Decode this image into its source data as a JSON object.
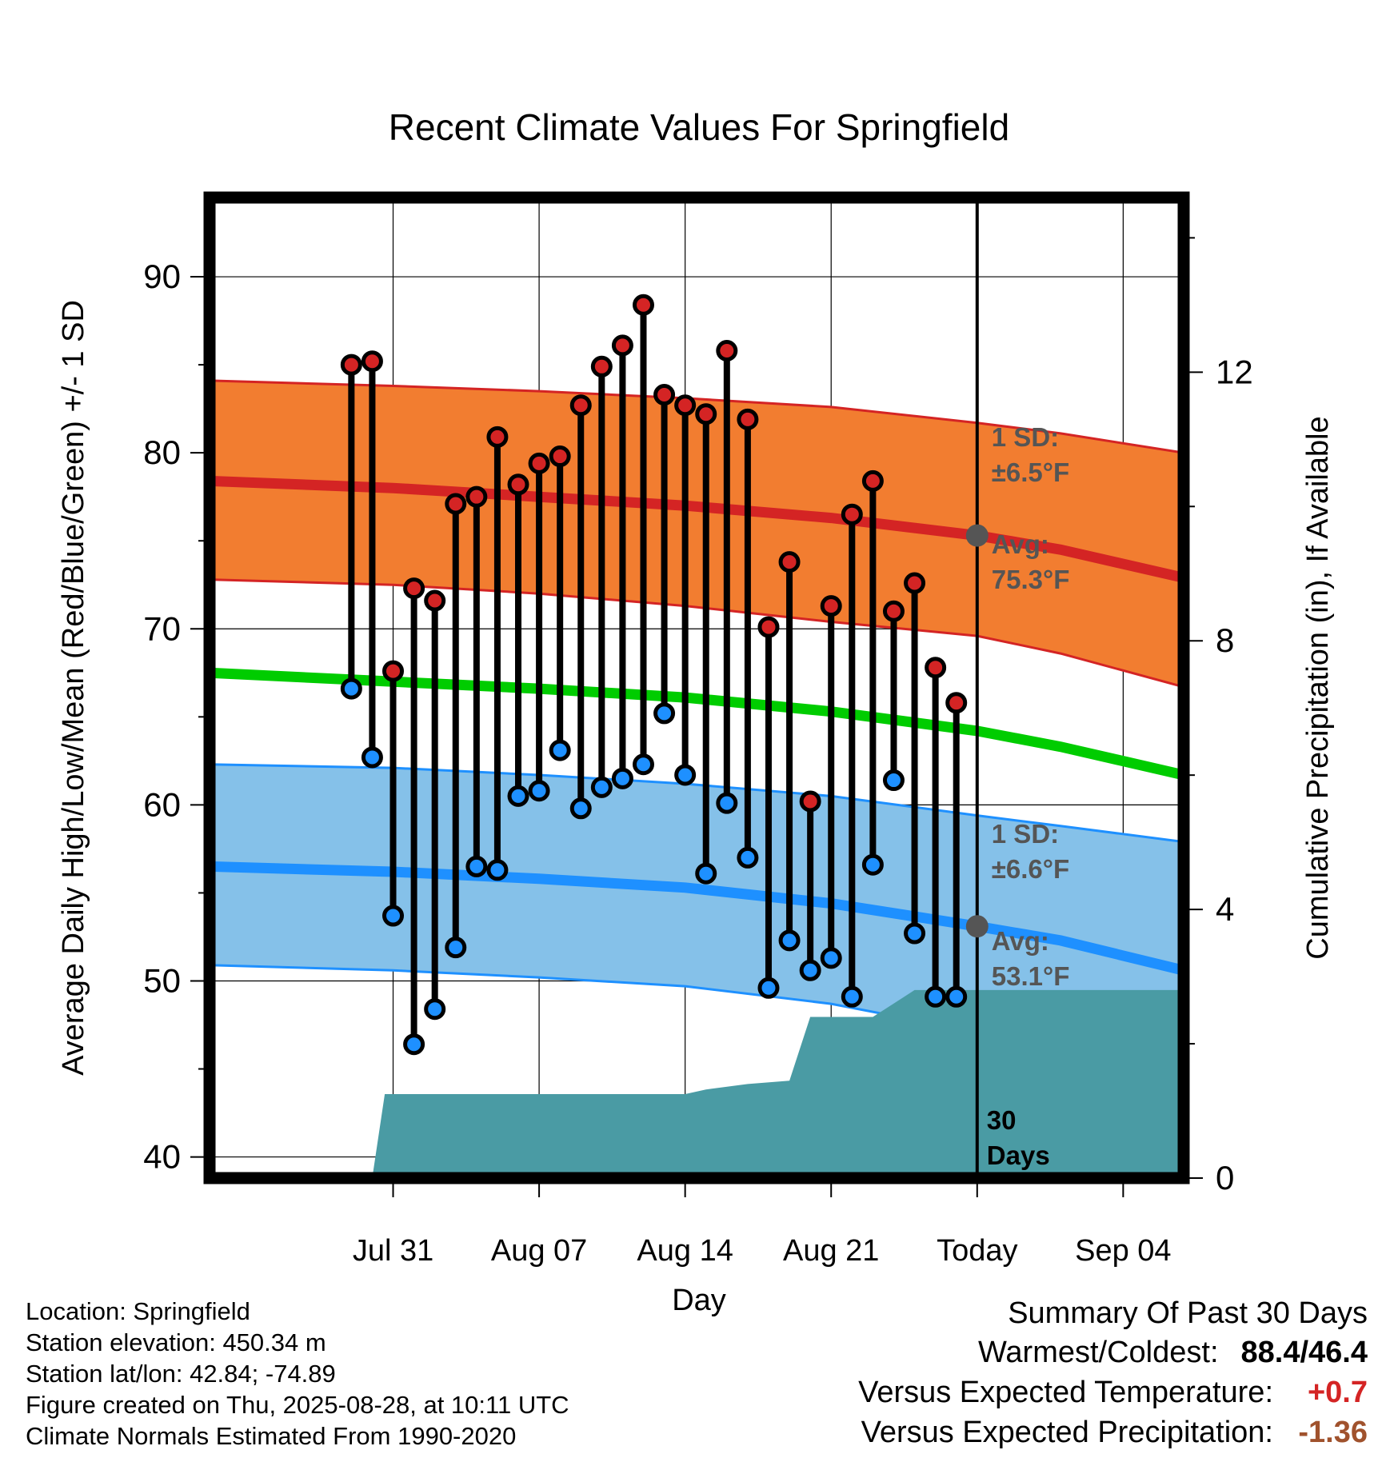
{
  "chart_data": {
    "type": "line",
    "title": "Recent Climate Values For Springfield",
    "xlabel": "Day",
    "ylabel": "Average Daily High/Low/Mean (Red/Blue/Green) +/- 1 SD",
    "y2label": "Cumulative Precipitation (in), If Available",
    "ylim": [
      38.8,
      94.5
    ],
    "y2lim": [
      0,
      14.6
    ],
    "xlim_days": [
      -36.8,
      9.9
    ],
    "yticks": [
      "40",
      "50",
      "60",
      "70",
      "80",
      "90"
    ],
    "y2ticks": [
      "0",
      "4",
      "8",
      "12"
    ],
    "xticks": [
      {
        "label": "Jul 31",
        "day": -28
      },
      {
        "label": "Aug 07",
        "day": -21
      },
      {
        "label": "Aug 14",
        "day": -14
      },
      {
        "label": "Aug 21",
        "day": -7
      },
      {
        "label": "Today",
        "day": 0
      },
      {
        "label": "Sep 04",
        "day": 7
      }
    ],
    "normals": {
      "x": [
        -36.8,
        -28,
        -21,
        -14,
        -7,
        0,
        4,
        9.9
      ],
      "high_mean": [
        78.4,
        78.0,
        77.5,
        77.0,
        76.3,
        75.3,
        74.5,
        72.9
      ],
      "high_upper": [
        84.1,
        83.8,
        83.5,
        83.1,
        82.6,
        81.7,
        81.1,
        80.0
      ],
      "high_lower": [
        72.8,
        72.5,
        72.0,
        71.3,
        70.4,
        69.6,
        68.6,
        66.7
      ],
      "mean": [
        67.5,
        67.0,
        66.6,
        66.1,
        65.3,
        64.2,
        63.3,
        61.7
      ],
      "low_mean": [
        56.5,
        56.2,
        55.8,
        55.3,
        54.4,
        53.1,
        52.3,
        50.6
      ],
      "low_upper": [
        62.3,
        62.1,
        61.7,
        61.2,
        60.5,
        59.4,
        58.8,
        57.9
      ],
      "low_lower": [
        50.9,
        50.6,
        50.2,
        49.7,
        48.7,
        47.1,
        45.9,
        44.8
      ]
    },
    "daily": {
      "day": [
        -30,
        -29,
        -28,
        -27,
        -26,
        -25,
        -24,
        -23,
        -22,
        -21,
        -20,
        -19,
        -18,
        -17,
        -16,
        -15,
        -14,
        -13,
        -12,
        -11,
        -10,
        -9,
        -8,
        -7,
        -6,
        -5,
        -4,
        -3,
        -2,
        -1
      ],
      "high": [
        85.0,
        85.2,
        67.6,
        72.3,
        71.6,
        77.1,
        77.5,
        80.9,
        78.2,
        79.4,
        79.8,
        82.7,
        84.9,
        86.1,
        88.4,
        83.3,
        82.7,
        82.2,
        85.8,
        81.9,
        70.1,
        73.8,
        60.2,
        71.3,
        76.5,
        78.4,
        71.0,
        72.6,
        67.8,
        65.8
      ],
      "low": [
        66.6,
        62.7,
        53.7,
        46.4,
        48.4,
        51.9,
        56.5,
        56.3,
        60.5,
        60.8,
        63.1,
        59.8,
        61.0,
        61.5,
        62.3,
        65.2,
        61.7,
        56.1,
        60.1,
        57.0,
        49.6,
        52.3,
        50.6,
        51.3,
        49.1,
        56.6,
        61.4,
        52.7,
        49.1,
        49.1
      ]
    },
    "precip": {
      "day": [
        -36.8,
        -29,
        -28.4,
        -18,
        -16,
        -15,
        -14,
        -13,
        -11,
        -9,
        -8,
        -7,
        -6,
        -5,
        -4,
        -3,
        9.9
      ],
      "cumulative": [
        0,
        0,
        1.25,
        1.25,
        1.25,
        1.25,
        1.25,
        1.32,
        1.4,
        1.45,
        2.4,
        2.4,
        2.4,
        2.4,
        2.6,
        2.8,
        2.8
      ]
    },
    "annotations": {
      "high_sd_label": "1 SD:",
      "high_sd_value": "±6.5°F",
      "high_avg_label": "Avg:",
      "high_avg_value": "75.3°F",
      "low_sd_label": "1 SD:",
      "low_sd_value": "±6.6°F",
      "low_avg_label": "Avg:",
      "low_avg_value": "53.1°F",
      "window_label_1": "30",
      "window_label_2": "Days"
    },
    "colors": {
      "high": "#d42424",
      "high_band": "#f27d30",
      "mean": "#00cc00",
      "low": "#1e90ff",
      "low_band": "#85c1e9",
      "precip": "#4a9ba4",
      "annotation": "#555555"
    }
  },
  "footer": {
    "location": "Location: Springfield",
    "elevation": "Station elevation: 450.34 m",
    "latlon": "Station lat/lon: 42.84; -74.89",
    "created": "Figure created on Thu, 2025-08-28, at 10:11 UTC",
    "normals": "Climate Normals Estimated From 1990-2020"
  },
  "summary": {
    "title": "Summary Of Past 30 Days",
    "warmest_label": "Warmest/Coldest:",
    "warmest_value": "88.4/46.4",
    "temp_label": "Versus Expected Temperature:",
    "temp_value": "+0.7",
    "temp_color": "#d42424",
    "precip_label": "Versus Expected Precipitation:",
    "precip_value": "-1.36",
    "precip_color": "#a0522d"
  }
}
